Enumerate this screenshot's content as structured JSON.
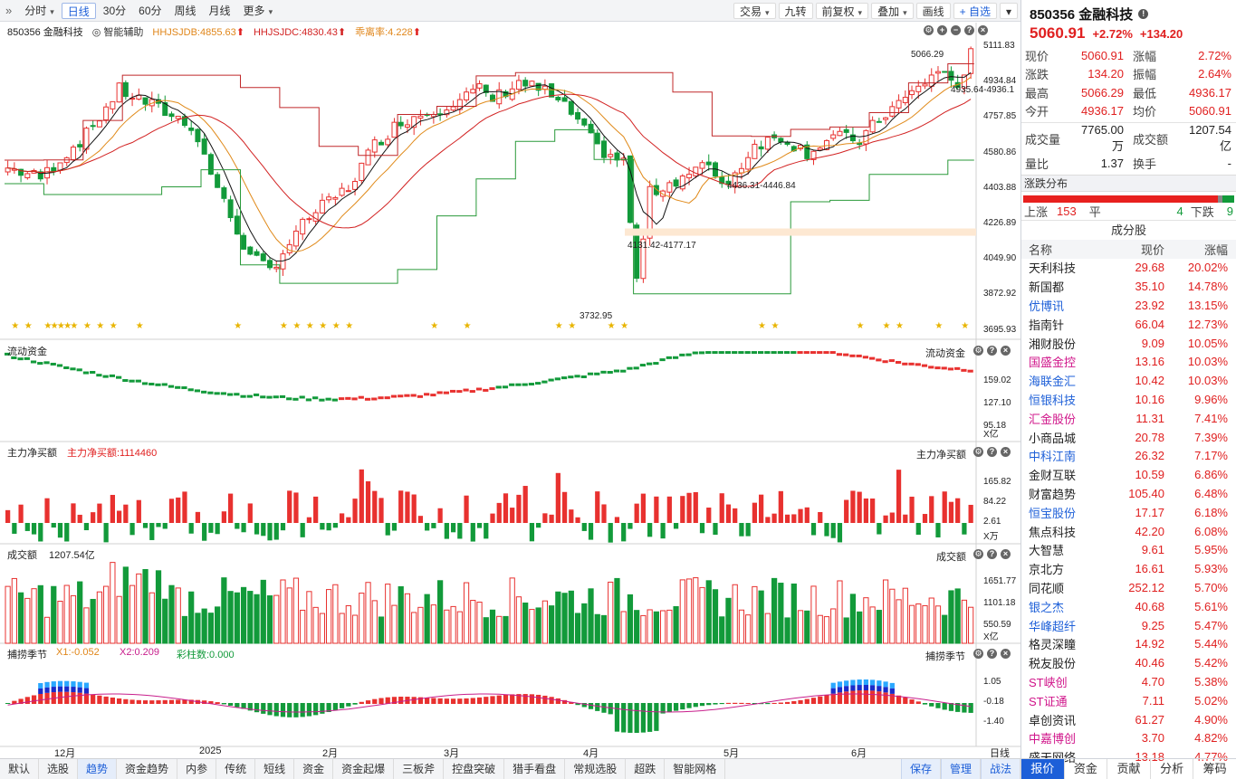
{
  "toolbar": {
    "left": [
      {
        "id": "timeshare",
        "label": "分时",
        "dropdown": true
      },
      {
        "id": "daily",
        "label": "日线",
        "active": true
      },
      {
        "id": "m30",
        "label": "30分"
      },
      {
        "id": "m60",
        "label": "60分"
      },
      {
        "id": "weekly",
        "label": "周线"
      },
      {
        "id": "monthly",
        "label": "月线"
      },
      {
        "id": "more",
        "label": "更多",
        "dropdown": true
      }
    ],
    "right": [
      {
        "id": "trade",
        "label": "交易",
        "dropdown": true
      },
      {
        "id": "jiuzhuan",
        "label": "九转"
      },
      {
        "id": "fq",
        "label": "前复权",
        "dropdown": true
      },
      {
        "id": "overlay",
        "label": "叠加",
        "dropdown": true
      },
      {
        "id": "draw",
        "label": "画线"
      },
      {
        "id": "addfav",
        "label": "+ 自选",
        "blue": true
      },
      {
        "id": "menu",
        "label": "▾"
      }
    ]
  },
  "main": {
    "name": "850356 金融科技",
    "assist": "智能辅助",
    "ind1": "HHJSJDB:4855.63",
    "ind2": "HHJSJDC:4830.43",
    "ind3": "乖离率:4.228",
    "y_labels": [
      "5111.83",
      "4934.84",
      "4757.85",
      "4580.86",
      "4403.88",
      "4226.89",
      "4049.90",
      "3872.92",
      "3695.93"
    ],
    "ann_high": "5066.29",
    "ann_right": "4935.64-4936.1",
    "ann_mid": "4436.31-4446.84",
    "ann_low_range": "4131.42-4177.17",
    "ann_low": "3732.95"
  },
  "flow": {
    "title": "流动资金",
    "y_labels": [
      "159.02",
      "127.10",
      "95.18"
    ],
    "unit": "X亿"
  },
  "net": {
    "title": "主力净买额",
    "legend": "主力净买额:1114460",
    "y_labels": [
      "165.82",
      "84.22",
      "2.61"
    ],
    "unit": "X万"
  },
  "turnover": {
    "title": "成交额",
    "legend": "1207.54亿",
    "y_labels": [
      "1651.77",
      "1101.18",
      "550.59"
    ],
    "unit": "X亿"
  },
  "season": {
    "title": "捕捞季节",
    "x1": "X1:-0.052",
    "x2": "X2:0.209",
    "cai": "彩柱数:0.000",
    "y_labels": [
      "1.05",
      "-0.18",
      "-1.40"
    ]
  },
  "x_labels": [
    "12月",
    "2025",
    "2月",
    "3月",
    "4月",
    "5月",
    "6月"
  ],
  "period_label": "日线",
  "bottom_tabs": [
    "默认",
    "选股",
    "趋势",
    "资金趋势",
    "内参",
    "传统",
    "短线",
    "资金",
    "资金起爆",
    "三板斧",
    "控盘突破",
    "猎手看盘",
    "常规选股",
    "超跌",
    "智能网格"
  ],
  "bottom_active": "趋势",
  "bottom_right": [
    "保存",
    "管理",
    "战法"
  ],
  "sidebar": {
    "code": "850356 金融科技",
    "price": "5060.91",
    "pct": "+2.72%",
    "chg": "+134.20",
    "quote": [
      [
        "现价",
        "5060.91",
        "涨幅",
        "2.72%"
      ],
      [
        "涨跌",
        "134.20",
        "振幅",
        "2.64%"
      ],
      [
        "最高",
        "5066.29",
        "最低",
        "4936.17"
      ],
      [
        "今开",
        "4936.17",
        "均价",
        "5060.91"
      ]
    ],
    "quote2": [
      [
        "成交量",
        "7765.00万",
        "成交额",
        "1207.54亿"
      ],
      [
        "量比",
        "1.37",
        "换手",
        "-"
      ]
    ],
    "dist_title": "涨跌分布",
    "dist": {
      "up_label": "上涨",
      "up": "153",
      "flat_label": "平",
      "flat": "4",
      "down_label": "下跌",
      "down": "9",
      "up_n": 153,
      "flat_n": 4,
      "down_n": 9
    },
    "cons_title": "成分股",
    "cons_head": [
      "名称",
      "现价",
      "涨幅"
    ],
    "cons": [
      [
        "天利科技",
        "29.68",
        "20.02%",
        "#222"
      ],
      [
        "新国都",
        "35.10",
        "14.78%",
        "#222"
      ],
      [
        "优博讯",
        "23.92",
        "13.15%",
        "#1d5fd8"
      ],
      [
        "指南针",
        "66.04",
        "12.73%",
        "#222"
      ],
      [
        "湘财股份",
        "9.09",
        "10.05%",
        "#222"
      ],
      [
        "国盛金控",
        "13.16",
        "10.03%",
        "#d0158a"
      ],
      [
        "海联金汇",
        "10.42",
        "10.03%",
        "#1d5fd8"
      ],
      [
        "恒银科技",
        "10.16",
        "9.96%",
        "#1d5fd8"
      ],
      [
        "汇金股份",
        "11.31",
        "7.41%",
        "#d0158a"
      ],
      [
        "小商品城",
        "20.78",
        "7.39%",
        "#222"
      ],
      [
        "中科江南",
        "26.32",
        "7.17%",
        "#1d5fd8"
      ],
      [
        "金财互联",
        "10.59",
        "6.86%",
        "#222"
      ],
      [
        "财富趋势",
        "105.40",
        "6.48%",
        "#222"
      ],
      [
        "恒宝股份",
        "17.17",
        "6.18%",
        "#1d5fd8"
      ],
      [
        "焦点科技",
        "42.20",
        "6.08%",
        "#222"
      ],
      [
        "大智慧",
        "9.61",
        "5.95%",
        "#222"
      ],
      [
        "京北方",
        "16.61",
        "5.93%",
        "#222"
      ],
      [
        "同花顺",
        "252.12",
        "5.70%",
        "#222"
      ],
      [
        "银之杰",
        "40.68",
        "5.61%",
        "#1d5fd8"
      ],
      [
        "华峰超纤",
        "9.25",
        "5.47%",
        "#1d5fd8"
      ],
      [
        "格灵深瞳",
        "14.92",
        "5.44%",
        "#222"
      ],
      [
        "税友股份",
        "40.46",
        "5.42%",
        "#222"
      ],
      [
        "ST峡创",
        "4.70",
        "5.38%",
        "#d0158a"
      ],
      [
        "ST证通",
        "7.11",
        "5.02%",
        "#d0158a"
      ],
      [
        "卓创资讯",
        "61.27",
        "4.90%",
        "#222"
      ],
      [
        "中嘉博创",
        "3.70",
        "4.82%",
        "#d0158a"
      ],
      [
        "盛天网络",
        "13.18",
        "4.77%",
        "#222"
      ]
    ],
    "tabs": [
      "报价",
      "资金",
      "贡献",
      "分析",
      "筹码"
    ],
    "tab_active": "报价"
  },
  "colors": {
    "up": "#e8312f",
    "down": "#129a3a",
    "ma1": "#111111",
    "ma2": "#e08a1a",
    "ma3": "#d22222",
    "band": "#2a9a3a",
    "accent": "#1d5fd8"
  }
}
